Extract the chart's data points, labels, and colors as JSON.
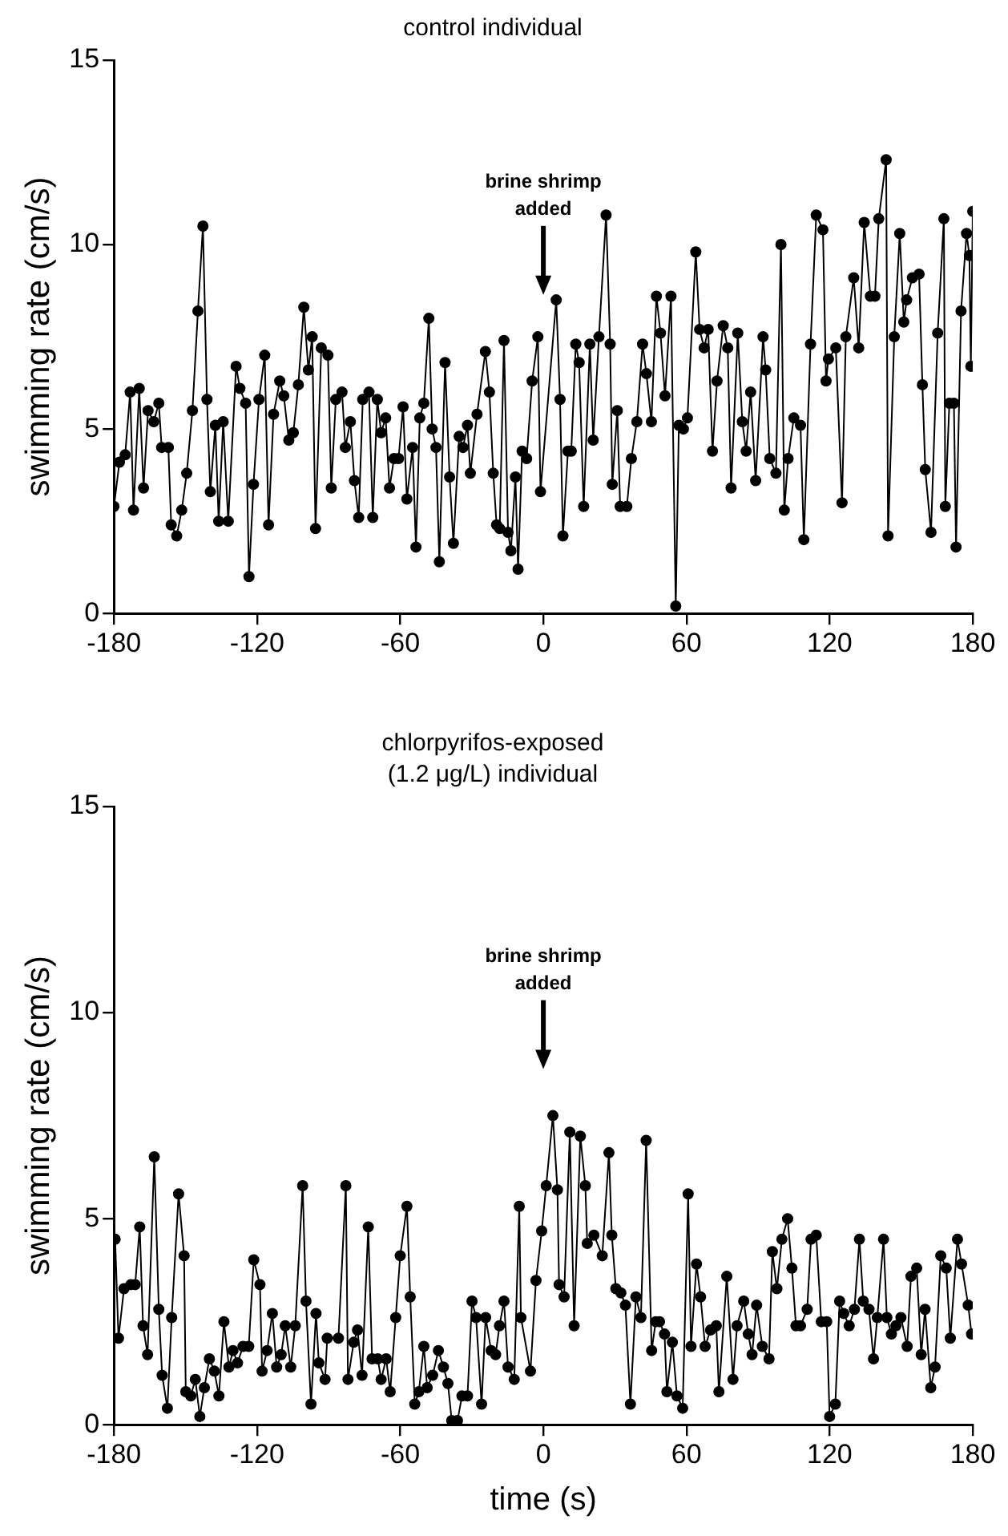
{
  "chart_data": [
    {
      "type": "line",
      "title": "control individual",
      "ylabel": "swimming rate (cm/s)",
      "color": "#000000",
      "marker": "circle",
      "grid": false,
      "legend": false,
      "xlim": [
        -180,
        180
      ],
      "xticks": [
        -180,
        -120,
        -60,
        0,
        60,
        120,
        180
      ],
      "ylim": [
        0,
        15
      ],
      "yticks": [
        0,
        5,
        10,
        15
      ],
      "annotations": [
        "brine shrimp added"
      ],
      "x": [
        -180,
        -177.7,
        -175.3,
        -173.2,
        -171.8,
        -169.4,
        -167.6,
        -165.7,
        -163.3,
        -161.2,
        -160,
        -157.2,
        -156,
        -153.7,
        -151.6,
        -149.5,
        -147.1,
        -144.8,
        -142.7,
        -141,
        -139.6,
        -137.5,
        -136.1,
        -134.2,
        -132.1,
        -128.8,
        -127.2,
        -124.8,
        -123.4,
        -121.5,
        -119.2,
        -116.8,
        -115.2,
        -113.1,
        -110.5,
        -108.8,
        -106.7,
        -104.8,
        -102.7,
        -100.4,
        -98.5,
        -96.9,
        -95.5,
        -93.1,
        -90.3,
        -88.9,
        -87,
        -84.4,
        -83,
        -80.9,
        -79.2,
        -77.4,
        -75.7,
        -73.1,
        -71.5,
        -69.6,
        -68,
        -66.1,
        -64.5,
        -62.6,
        -60.7,
        -58.8,
        -57.2,
        -54.8,
        -53.4,
        -51.8,
        -50.1,
        -48,
        -46.6,
        -45,
        -43.6,
        -41.2,
        -39.3,
        -37.7,
        -35.3,
        -33.7,
        -31.8,
        -30.6,
        -27.8,
        -24.3,
        -22.6,
        -21,
        -19.6,
        -18.3,
        -16.5,
        -14.8,
        -13.6,
        -11.7,
        -10.6,
        -8.9,
        -7,
        -4.7,
        -2.3,
        -1.2,
        5.4,
        7,
        8.2,
        10.3,
        11.7,
        13.6,
        15,
        16.9,
        19.5,
        20.9,
        23.3,
        26.3,
        28,
        28.9,
        31,
        32.2,
        35,
        36.9,
        39.2,
        41.6,
        43.2,
        45.3,
        47.4,
        49.1,
        51,
        53.5,
        55.5,
        56.8,
        58.7,
        60.4,
        63.9,
        65.5,
        67.4,
        69.1,
        70.9,
        72.8,
        75.4,
        77.3,
        78.7,
        81.5,
        83.4,
        85,
        86.9,
        89,
        92.1,
        93.2,
        94.9,
        97.5,
        99.6,
        101,
        102.6,
        105,
        107.8,
        109.2,
        112,
        114.4,
        117.2,
        118.5,
        119.5,
        122.6,
        125.2,
        126.8,
        130.1,
        132.2,
        134.5,
        137.1,
        139,
        140.6,
        143.7,
        144.5,
        147.1,
        149.4,
        151.1,
        152.3,
        154.7,
        157.5,
        158.9,
        160.1,
        162.5,
        165.3,
        167.9,
        168.5,
        170.2,
        172.1,
        173,
        175.1,
        177.4,
        178.6,
        179.2,
        180
      ],
      "values": [
        2.9,
        4.1,
        4.3,
        6,
        2.8,
        6.1,
        3.4,
        5.5,
        5.2,
        5.7,
        4.5,
        4.5,
        2.4,
        2.1,
        2.8,
        3.8,
        5.5,
        8.2,
        10.5,
        5.8,
        3.3,
        5.1,
        2.5,
        5.2,
        2.5,
        6.7,
        6.1,
        5.7,
        1,
        3.5,
        5.8,
        7,
        2.4,
        5.4,
        6.3,
        5.9,
        4.7,
        4.9,
        6.2,
        8.3,
        6.6,
        7.5,
        2.3,
        7.2,
        7,
        3.4,
        5.8,
        6,
        4.5,
        5.2,
        3.6,
        2.6,
        5.8,
        6,
        2.6,
        5.8,
        4.9,
        5.3,
        3.4,
        4.2,
        4.2,
        5.6,
        3.1,
        4.5,
        1.8,
        5.3,
        5.7,
        8,
        5,
        4.5,
        1.4,
        6.8,
        3.7,
        1.9,
        4.8,
        4.5,
        5.1,
        3.8,
        5.4,
        7.1,
        6,
        3.8,
        2.4,
        2.3,
        7.4,
        2.2,
        1.7,
        3.7,
        1.2,
        4.4,
        4.2,
        6.3,
        7.5,
        3.3,
        8.5,
        5.8,
        2.1,
        4.4,
        4.4,
        7.3,
        6.8,
        2.9,
        7.3,
        4.7,
        7.5,
        10.8,
        7.3,
        3.5,
        5.5,
        2.9,
        2.9,
        4.2,
        5.2,
        7.3,
        6.5,
        5.2,
        8.6,
        7.6,
        5.9,
        8.6,
        0.2,
        5.1,
        5,
        5.3,
        9.8,
        7.7,
        7.2,
        7.7,
        4.4,
        6.3,
        7.8,
        7.2,
        3.4,
        7.6,
        5.2,
        4.4,
        6,
        3.6,
        7.5,
        6.6,
        4.2,
        3.8,
        10,
        2.8,
        4.2,
        5.3,
        5.1,
        2,
        7.3,
        10.8,
        10.4,
        6.3,
        6.9,
        7.2,
        3,
        7.5,
        9.1,
        7.2,
        10.6,
        8.6,
        8.6,
        10.7,
        12.3,
        2.1,
        7.5,
        10.3,
        7.9,
        8.5,
        9.1,
        9.2,
        6.2,
        3.9,
        2.2,
        7.6,
        10.7,
        2.9,
        5.7,
        5.7,
        1.8,
        8.2,
        10.3,
        9.7,
        6.7,
        10.9
      ]
    },
    {
      "type": "line",
      "title": "chlorpyrifos-exposed (1.2 μg/L) individual",
      "xlabel": "time (s)",
      "ylabel": "swimming rate (cm/s)",
      "color": "#000000",
      "marker": "circle",
      "grid": false,
      "legend": false,
      "xlim": [
        -180,
        180
      ],
      "xticks": [
        -180,
        -120,
        -60,
        0,
        60,
        120,
        180
      ],
      "ylim": [
        0,
        15
      ],
      "yticks": [
        0,
        5,
        10,
        15
      ],
      "annotations": [
        "brine shrimp added"
      ],
      "x": [
        -179.5,
        -178.1,
        -175.8,
        -172.9,
        -171.1,
        -169.2,
        -167.8,
        -165.9,
        -163.1,
        -161.2,
        -159.8,
        -157.6,
        -155.8,
        -152.9,
        -150.6,
        -149.9,
        -147.8,
        -145.9,
        -144,
        -142.1,
        -140,
        -137.9,
        -136,
        -133.9,
        -131.8,
        -130.1,
        -128.2,
        -125.9,
        -123.5,
        -121.4,
        -118.8,
        -117.9,
        -115.8,
        -113.6,
        -111.8,
        -109.9,
        -108.2,
        -105.9,
        -104,
        -100.9,
        -99.5,
        -97.4,
        -95.3,
        -94.1,
        -91.5,
        -90.6,
        -85.9,
        -82.8,
        -81.9,
        -79.5,
        -77.9,
        -76,
        -73.4,
        -71.8,
        -69.4,
        -68,
        -65.9,
        -64.2,
        -61.9,
        -60,
        -57.2,
        -55.8,
        -53.9,
        -52.2,
        -50.1,
        -48.7,
        -46.4,
        -44,
        -41.9,
        -40,
        -38.4,
        -36,
        -34.1,
        -31.8,
        -29.9,
        -28.2,
        -25.9,
        -24.2,
        -21.9,
        -20,
        -18.4,
        -16.5,
        -14.8,
        -12.2,
        -10.1,
        -9.4,
        -5.4,
        -3.1,
        -0.7,
        1.2,
        4,
        5.9,
        6.6,
        8.7,
        11.1,
        12.9,
        15.5,
        17.6,
        18.4,
        21.2,
        24.7,
        27.5,
        28.7,
        30.4,
        32.5,
        34.4,
        36.5,
        38.8,
        40.9,
        43.1,
        45.4,
        47.1,
        48.7,
        50.8,
        51.8,
        54.1,
        56,
        58.4,
        60.7,
        61.9,
        64.2,
        65.9,
        67.8,
        70.1,
        72.5,
        73.6,
        76.9,
        79.5,
        81.2,
        84,
        85.9,
        87.5,
        89.4,
        91.8,
        94.6,
        96,
        97.9,
        100,
        102.4,
        104.2,
        105.9,
        107.8,
        110.6,
        112.2,
        114.4,
        116.5,
        118.8,
        120,
        122.4,
        124.2,
        125.9,
        128.2,
        130.4,
        132.5,
        134.1,
        136.5,
        138.4,
        140,
        142.6,
        144,
        145.9,
        147.8,
        149.9,
        152.5,
        154.1,
        156.5,
        158.4,
        160,
        162.4,
        164.2,
        166.6,
        168.9,
        170.6,
        173.6,
        175.3,
        178.1,
        179.5
      ],
      "values": [
        4.5,
        2.1,
        3.3,
        3.4,
        3.4,
        4.8,
        2.4,
        1.7,
        6.5,
        2.8,
        1.2,
        0.4,
        2.6,
        5.6,
        4.1,
        0.8,
        0.7,
        1.1,
        0.2,
        0.9,
        1.6,
        1.3,
        0.7,
        2.5,
        1.4,
        1.8,
        1.5,
        1.9,
        1.9,
        4,
        3.4,
        1.3,
        1.8,
        2.7,
        1.4,
        1.7,
        2.4,
        1.4,
        2.4,
        5.8,
        3,
        0.5,
        2.7,
        1.5,
        1.1,
        2.1,
        2.1,
        5.8,
        1.1,
        2,
        2.3,
        1.2,
        4.8,
        1.6,
        1.6,
        1.1,
        1.6,
        0.8,
        2.6,
        4.1,
        5.3,
        3.1,
        0.5,
        0.8,
        1.9,
        0.9,
        1.2,
        1.8,
        1.4,
        1,
        0.1,
        0.1,
        0.7,
        0.7,
        3,
        2.6,
        0.5,
        2.6,
        1.8,
        1.7,
        2.4,
        3,
        1.4,
        1.1,
        5.3,
        2.6,
        1.3,
        3.5,
        4.7,
        5.8,
        7.5,
        5.7,
        3.4,
        3.1,
        7.1,
        2.4,
        7,
        5.8,
        4.4,
        4.6,
        4.1,
        6.6,
        4.6,
        3.3,
        3.2,
        2.9,
        0.5,
        3.1,
        2.6,
        6.9,
        1.8,
        2.5,
        2.5,
        2.2,
        0.8,
        2,
        0.7,
        0.4,
        5.6,
        1.9,
        3.9,
        3.1,
        1.9,
        2.3,
        2.4,
        0.8,
        3.6,
        1.1,
        2.4,
        3,
        2.2,
        1.7,
        2.9,
        1.9,
        1.6,
        4.2,
        3.3,
        4.5,
        5,
        3.8,
        2.4,
        2.4,
        2.8,
        4.5,
        4.6,
        2.5,
        2.5,
        0.2,
        0.5,
        3,
        2.7,
        2.4,
        2.8,
        4.5,
        3,
        2.8,
        1.6,
        2.6,
        4.5,
        2.6,
        2.2,
        2.4,
        2.6,
        1.9,
        3.6,
        3.8,
        1.7,
        2.8,
        0.9,
        1.4,
        4.1,
        3.8,
        2.1,
        4.5,
        3.9,
        2.9,
        2.2
      ]
    }
  ]
}
